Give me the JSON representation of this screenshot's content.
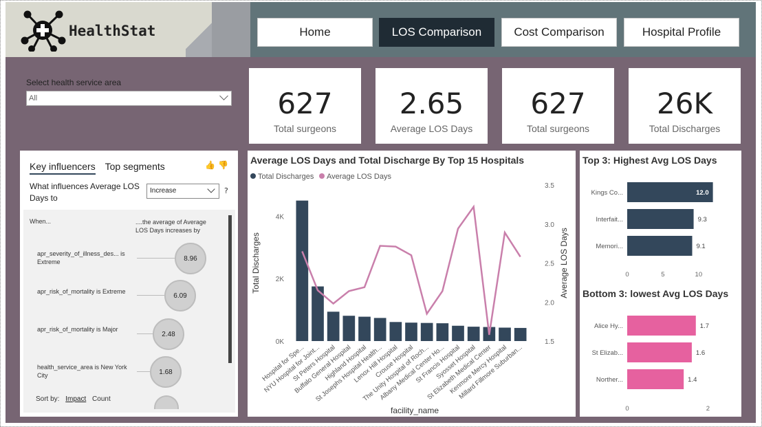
{
  "brand": {
    "name": "HealthStat"
  },
  "nav": {
    "items": [
      "Home",
      "LOS Comparison",
      "Cost Comparison",
      "Hospital Profile"
    ],
    "active": "LOS Comparison"
  },
  "slicer": {
    "label": "Select health service area",
    "value": "All"
  },
  "cards": [
    {
      "value": "627",
      "caption": "Total surgeons"
    },
    {
      "value": "2.65",
      "caption": "Average LOS Days"
    },
    {
      "value": "627",
      "caption": "Total surgeons"
    },
    {
      "value": "26K",
      "caption": "Total Discharges"
    }
  ],
  "key_influencers": {
    "tabs": [
      "Key influencers",
      "Top segments"
    ],
    "question": "What influences Average LOS Days to",
    "dropdown": "Increase",
    "help": "?",
    "when": "When...",
    "increases": "....the average of Average LOS Days increases by",
    "items": [
      {
        "text": "apr_severity_of_illness_des... is Extreme",
        "value": "8.96"
      },
      {
        "text": "apr_risk_of_mortality is Extreme",
        "value": "6.09"
      },
      {
        "text": "apr_risk_of_mortality is Major",
        "value": "2.48"
      },
      {
        "text": "health_service_area is New York City",
        "value": "1.68"
      }
    ],
    "sort_label": "Sort by:",
    "sort_options": [
      "Impact",
      "Count"
    ],
    "sort_active": "Impact"
  },
  "combo_title": "Average LOS Days and Total Discharge By Top 15 Hospitals",
  "chart_data": [
    {
      "type": "bar+line",
      "title": "Average LOS Days and Total Discharge By Top 15 Hospitals",
      "xlabel": "facility_name",
      "ylabel": "Total Discharges",
      "y2label": "Average LOS Days",
      "categories": [
        "Hospital for Spe...",
        "NYU Hospital for Joint...",
        "St Peters Hospital",
        "Buffalo General Hospital",
        "Highland Hospital",
        "St Josephs Hospital Health...",
        "Lenox Hill Hospital",
        "Crouse Hospital",
        "The Unity Hospital of Roch...",
        "Albany Medical Center Ho...",
        "St Francis Hospital",
        "Syosset Hospital",
        "St Elizabeth Medical Center",
        "Kenmore Mercy Hospital",
        "Millard Fillmore Suburban..."
      ],
      "series": [
        {
          "name": "Total Discharges",
          "axis": "left",
          "values": [
            4500,
            1750,
            940,
            810,
            780,
            740,
            610,
            590,
            580,
            570,
            490,
            460,
            450,
            430,
            420
          ]
        },
        {
          "name": "Average LOS Days",
          "axis": "right",
          "values": [
            2.65,
            2.15,
            1.98,
            2.14,
            2.19,
            2.72,
            2.71,
            2.6,
            1.85,
            2.14,
            2.94,
            3.22,
            1.58,
            2.89,
            2.58
          ]
        }
      ],
      "yticks": [
        "0K",
        "2K",
        "4K"
      ],
      "ylim": [
        0,
        5000
      ],
      "y2ticks": [
        "1.5",
        "2.0",
        "2.5",
        "3.0",
        "3.5"
      ],
      "y2lim": [
        1.5,
        3.5
      ],
      "colors": {
        "bars": "#33475b",
        "line": "#c97fab"
      },
      "legend": "top-left"
    },
    {
      "type": "bar",
      "orientation": "horizontal",
      "title": "Top 3: Highest Avg LOS Days",
      "categories": [
        "Kings Co...",
        "Interfait...",
        "Memori..."
      ],
      "values": [
        12.0,
        9.3,
        9.1
      ],
      "labels": [
        "12.0",
        "9.3",
        "9.1"
      ],
      "xticks": [
        "0",
        "5",
        "10"
      ],
      "xlim": [
        0,
        13
      ],
      "color": "#33475b"
    },
    {
      "type": "bar",
      "orientation": "horizontal",
      "title": "Bottom 3: lowest Avg LOS Days",
      "categories": [
        "Alice Hy...",
        "St Elizab...",
        "Norther..."
      ],
      "values": [
        1.7,
        1.6,
        1.4
      ],
      "labels": [
        "1.7",
        "1.6",
        "1.4"
      ],
      "xticks": [
        "0",
        "2"
      ],
      "xlim": [
        0,
        2.3
      ],
      "color": "#e6619f"
    }
  ]
}
